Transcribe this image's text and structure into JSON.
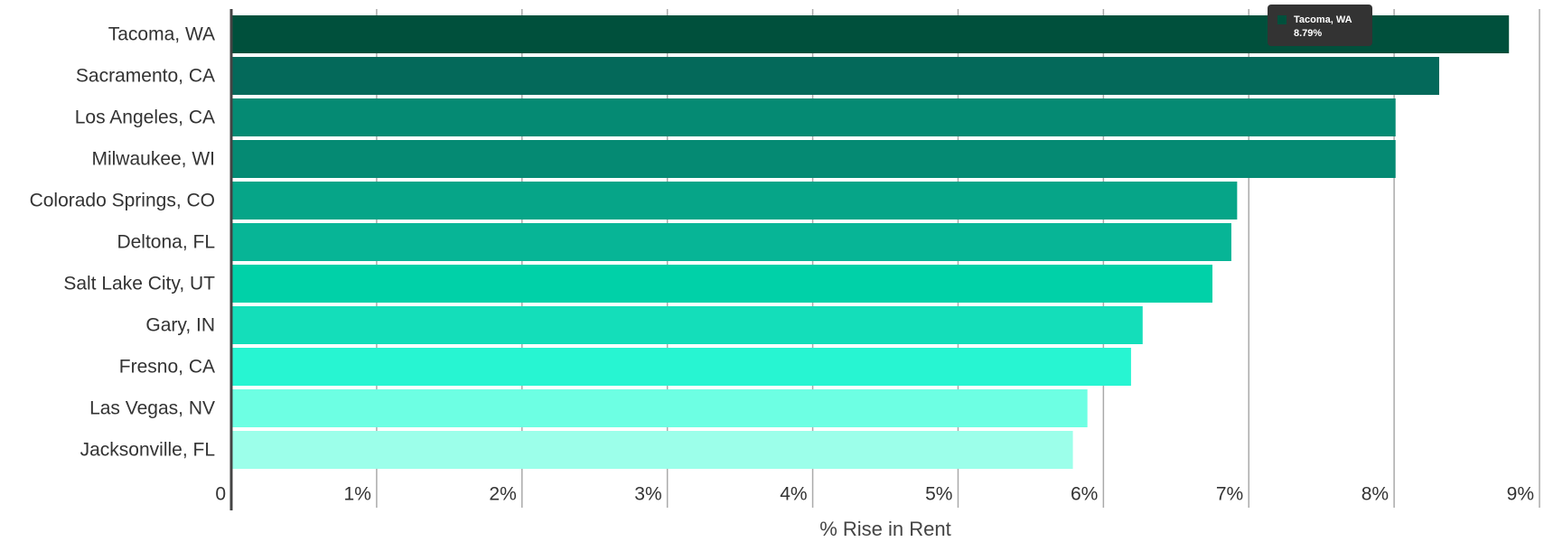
{
  "chart_data": {
    "type": "hbar",
    "categories": [
      "Tacoma, WA",
      "Sacramento, CA",
      "Los Angeles, CA",
      "Milwaukee, WI",
      "Colorado Springs, CO",
      "Deltona, FL",
      "Salt Lake City, UT",
      "Gary, IN",
      "Fresno, CA",
      "Las Vegas, NV",
      "Jacksonville, FL"
    ],
    "values": [
      8.79,
      8.31,
      8.01,
      8.01,
      6.92,
      6.88,
      6.75,
      6.27,
      6.19,
      5.89,
      5.79
    ],
    "colors": [
      "#00503c",
      "#04695a",
      "#058a73",
      "#058a73",
      "#06a588",
      "#07b596",
      "#00d1a8",
      "#14deba",
      "#27f5d2",
      "#6dffe3",
      "#9cffea"
    ],
    "xlabel": "% Rise in Rent",
    "xlim": [
      0,
      9
    ],
    "xticks": [
      0,
      {
        "value": 1,
        "label": "1%"
      },
      {
        "value": 2,
        "label": "2%"
      },
      {
        "value": 3,
        "label": "3%"
      },
      {
        "value": 4,
        "label": "4%"
      },
      {
        "value": 5,
        "label": "5%"
      },
      {
        "value": 6,
        "label": "6%"
      },
      {
        "value": 7,
        "label": "7%"
      },
      {
        "value": 8,
        "label": "8%"
      },
      {
        "value": 9,
        "label": "9%"
      }
    ],
    "grid": true,
    "tooltip": {
      "title": "Tacoma, WA",
      "label": "8.79%",
      "color": "#00503c"
    }
  }
}
